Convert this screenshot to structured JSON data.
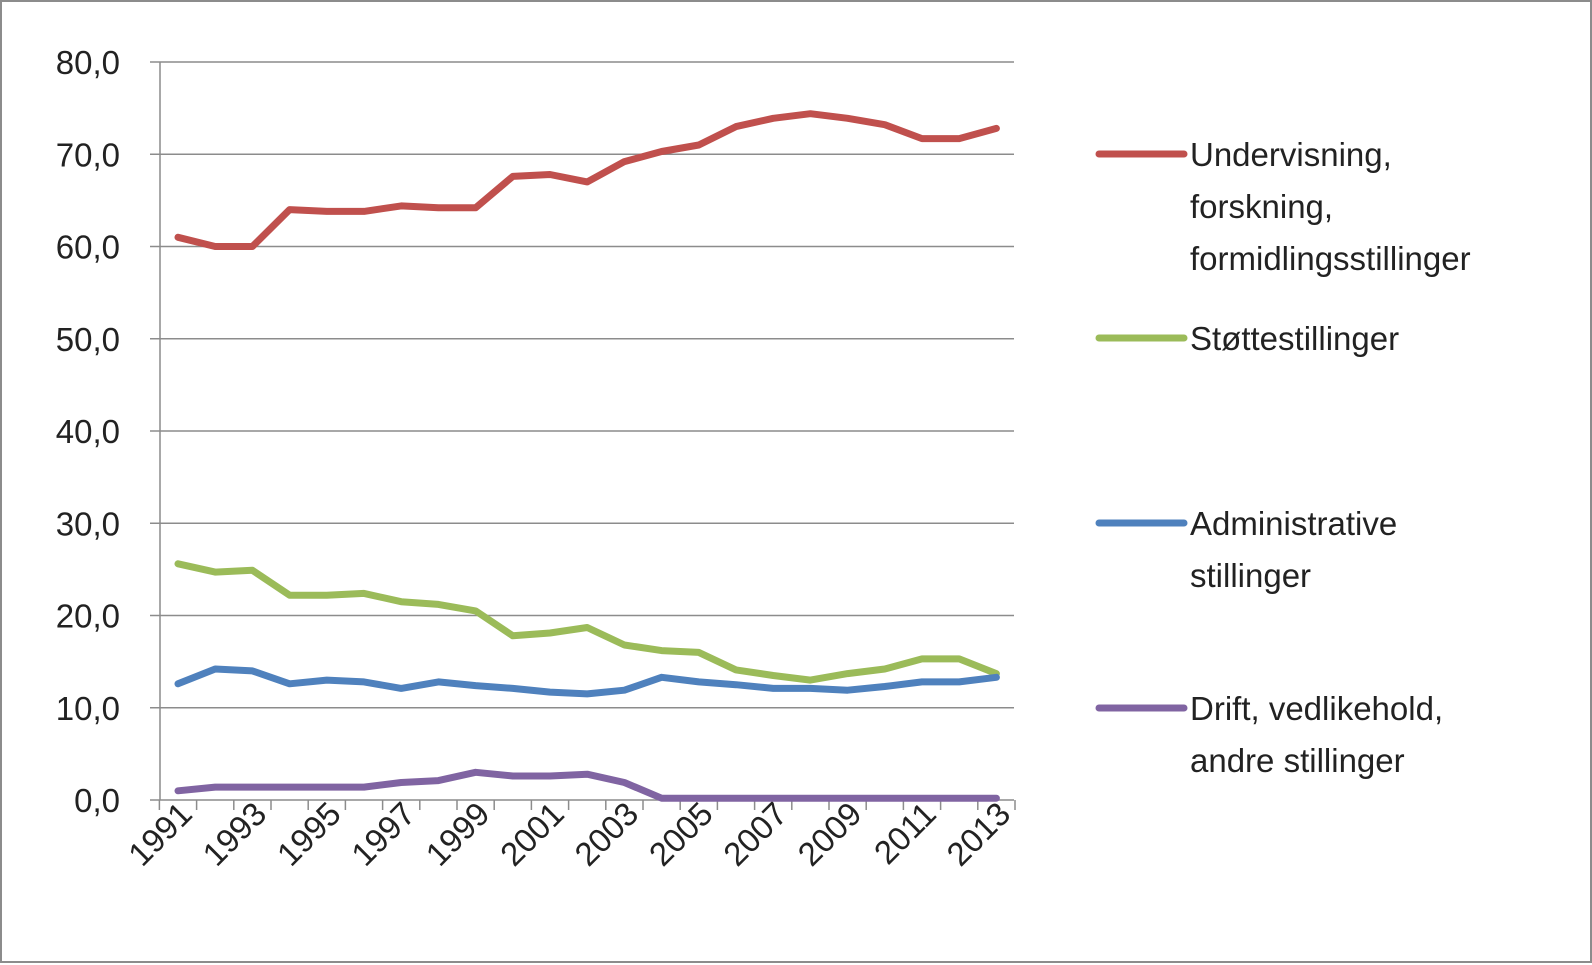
{
  "chart_data": {
    "type": "line",
    "title": "",
    "xlabel": "",
    "ylabel": "",
    "x": [
      1991,
      1992,
      1993,
      1994,
      1995,
      1996,
      1997,
      1998,
      1999,
      2000,
      2001,
      2002,
      2003,
      2004,
      2005,
      2006,
      2007,
      2008,
      2009,
      2010,
      2011,
      2012,
      2013
    ],
    "x_tick_labels": [
      "1991",
      "1993",
      "1995",
      "1997",
      "1999",
      "2001",
      "2003",
      "2005",
      "2007",
      "2009",
      "2011",
      "2013"
    ],
    "ylim": [
      0,
      80
    ],
    "y_tick_labels": [
      "0,0",
      "10,0",
      "20,0",
      "30,0",
      "40,0",
      "50,0",
      "60,0",
      "70,0",
      "80,0"
    ],
    "grid": true,
    "legend_position": "right",
    "series": [
      {
        "name": "Undervisning, forskning, formidlingsstillinger",
        "legend_lines": [
          "Undervisning,",
          "forskning,",
          "formidlingsstillinger"
        ],
        "color": "#c0504d",
        "values": [
          61.0,
          60.0,
          60.0,
          64.0,
          63.8,
          63.8,
          64.4,
          64.2,
          64.2,
          67.6,
          67.8,
          67.0,
          69.2,
          70.3,
          71.0,
          73.0,
          73.9,
          74.4,
          73.9,
          73.2,
          71.7,
          71.7,
          72.8
        ]
      },
      {
        "name": "Støttestillinger",
        "legend_lines": [
          "Støttestillinger"
        ],
        "color": "#9bbb59",
        "values": [
          25.6,
          24.7,
          24.9,
          22.2,
          22.2,
          22.4,
          21.5,
          21.2,
          20.5,
          17.8,
          18.1,
          18.7,
          16.8,
          16.2,
          16.0,
          14.1,
          13.5,
          13.0,
          13.7,
          14.2,
          15.3,
          15.3,
          13.7
        ]
      },
      {
        "name": "Administrative stillinger",
        "legend_lines": [
          "Administrative",
          "stillinger"
        ],
        "color": "#4f81bd",
        "values": [
          12.6,
          14.2,
          14.0,
          12.6,
          13.0,
          12.8,
          12.1,
          12.8,
          12.4,
          12.1,
          11.7,
          11.5,
          11.9,
          13.3,
          12.8,
          12.5,
          12.1,
          12.1,
          11.9,
          12.3,
          12.8,
          12.8,
          13.3
        ]
      },
      {
        "name": "Drift, vedlikehold, andre stillinger",
        "legend_lines": [
          "Drift, vedlikehold,",
          "andre stillinger"
        ],
        "color": "#8064a2",
        "values": [
          1.0,
          1.4,
          1.4,
          1.4,
          1.4,
          1.4,
          1.9,
          2.1,
          3.0,
          2.6,
          2.6,
          2.8,
          1.9,
          0.2,
          0.2,
          0.2,
          0.2,
          0.2,
          0.2,
          0.2,
          0.2,
          0.2,
          0.2
        ]
      }
    ]
  }
}
